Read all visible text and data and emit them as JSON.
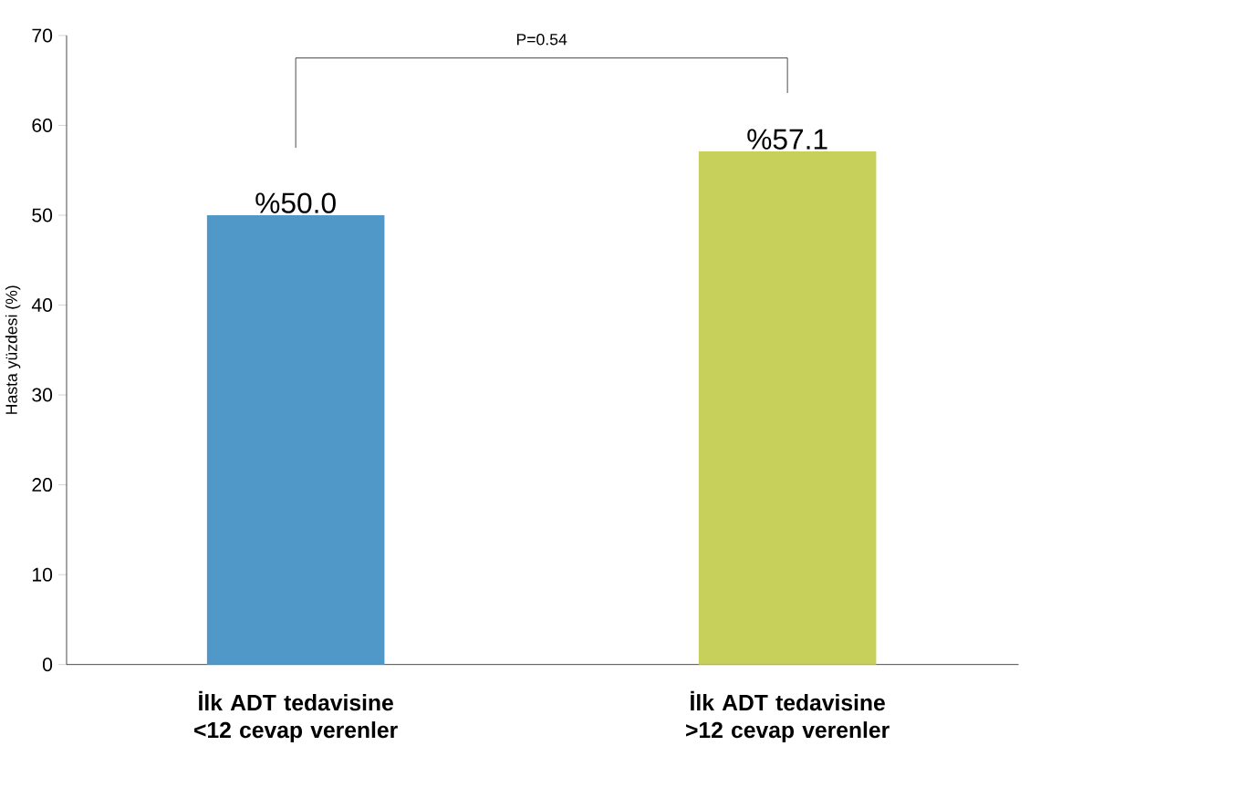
{
  "chart_data": {
    "type": "bar",
    "categories": [
      "**İlk ADT tedavisine <12 cevap verenler**",
      "**İlk ADT tedavisine >12 cevap verenler**"
    ],
    "values": [
      50.0,
      57.1
    ],
    "colors": [
      "#4f98c8",
      "#c8d05c"
    ],
    "value_labels": [
      "%50.0",
      "%57.1"
    ],
    "ylabel": "Hasta yüzdesi (%)",
    "ylim": [
      0,
      70
    ],
    "yticks": [
      0,
      10,
      20,
      30,
      40,
      50,
      60,
      70
    ],
    "annotations": [
      "P=0.54"
    ]
  }
}
